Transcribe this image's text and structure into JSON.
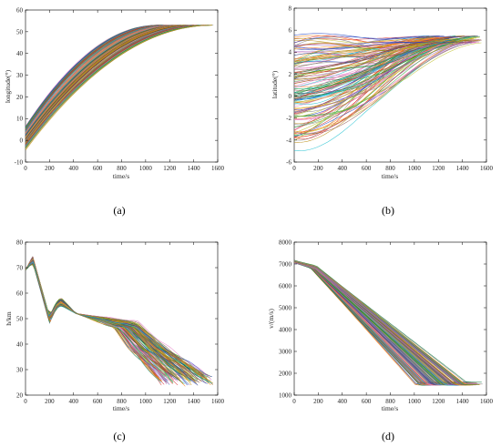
{
  "figure": {
    "palette": [
      "#1f3fbf",
      "#d62728",
      "#2ca02c",
      "#ff7f0e",
      "#9467bd",
      "#8c564b",
      "#17becf",
      "#bcbd22",
      "#e377c2",
      "#7f7f7f",
      "#0a7a3a",
      "#b8860b"
    ],
    "captions": [
      "(a)",
      "(b)",
      "(c)",
      "(d)"
    ]
  },
  "chart_data": [
    {
      "type": "line",
      "panel": "a",
      "xlabel": "time/s",
      "ylabel": "longitude(°)",
      "xlim": [
        0,
        1600
      ],
      "ylim": [
        -10,
        60
      ],
      "xticks": [
        0,
        200,
        400,
        600,
        800,
        1000,
        1200,
        1400,
        1600
      ],
      "yticks": [
        -10,
        0,
        10,
        20,
        30,
        40,
        50,
        60
      ],
      "grid": false,
      "series_summary": {
        "count": "many",
        "start_y_range": [
          -4,
          6
        ],
        "end_y": 53,
        "end_x_range": [
          1100,
          1560
        ]
      }
    },
    {
      "type": "line",
      "panel": "b",
      "xlabel": "time/s",
      "ylabel": "latitude(°)",
      "xlim": [
        0,
        1600
      ],
      "ylim": [
        -6,
        8
      ],
      "xticks": [
        0,
        200,
        400,
        600,
        800,
        1000,
        1200,
        1400,
        1600
      ],
      "yticks": [
        -6,
        -4,
        -2,
        0,
        2,
        4,
        6,
        8
      ],
      "grid": false,
      "series_summary": {
        "count": "many",
        "start_y_range": [
          -4.5,
          5
        ],
        "end_y_range": [
          4.8,
          5.5
        ],
        "end_x_range": [
          1100,
          1560
        ]
      }
    },
    {
      "type": "line",
      "panel": "c",
      "xlabel": "time/s",
      "ylabel": "h/km",
      "xlim": [
        0,
        1600
      ],
      "ylim": [
        20,
        80
      ],
      "xticks": [
        0,
        200,
        400,
        600,
        800,
        1000,
        1200,
        1400,
        1600
      ],
      "yticks": [
        20,
        30,
        40,
        50,
        60,
        70,
        80
      ],
      "grid": false,
      "series_summary": {
        "count": "many",
        "start_y": 70,
        "peak_y": 74,
        "end_y_range": [
          24,
          28
        ],
        "end_x_range": [
          1100,
          1560
        ]
      }
    },
    {
      "type": "line",
      "panel": "d",
      "xlabel": "time/s",
      "ylabel": "v/(m/s)",
      "xlim": [
        0,
        1600
      ],
      "ylim": [
        1000,
        8000
      ],
      "xticks": [
        0,
        200,
        400,
        600,
        800,
        1000,
        1200,
        1400,
        1600
      ],
      "yticks": [
        1000,
        2000,
        3000,
        4000,
        5000,
        6000,
        7000,
        8000
      ],
      "grid": false,
      "series_summary": {
        "count": "many",
        "start_y": 7100,
        "end_y": 1500,
        "end_x_range": [
          1100,
          1560
        ]
      }
    }
  ]
}
